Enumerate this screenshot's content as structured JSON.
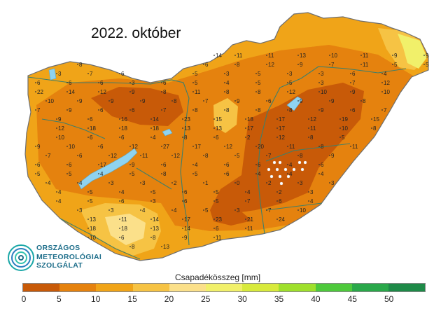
{
  "title": "2022. október",
  "logo": {
    "lines": [
      "ORSZÁGOS",
      "METEOROLÓGIAI",
      "SZOLGÁLAT"
    ]
  },
  "legend": {
    "title": "Csapadékösszeg [mm]",
    "ticks": [
      "0",
      "5",
      "10",
      "15",
      "20",
      "25",
      "30",
      "35",
      "40",
      "45",
      "50"
    ],
    "colors": [
      "#c85a08",
      "#e5820e",
      "#f0a418",
      "#f6c344",
      "#fbe08a",
      "#f1f06a",
      "#d8ea3c",
      "#9fe02c",
      "#4ec93c",
      "#2aa84a",
      "#1e8a48"
    ]
  },
  "map_colors": {
    "outside": "#ffffff",
    "border": "#6e6e6e",
    "river": "#3f7f6a",
    "lake": "#8fd3f0",
    "zone_lt5": "#c85a08",
    "zone_5_10": "#e5820e",
    "zone_10_15": "#f0a418",
    "zone_15_20": "#f6c344",
    "zone_20_25": "#fbe08a",
    "zone_25_30": "#f1f06a"
  },
  "stations": [
    "14",
    "11",
    "11",
    "13",
    "10",
    "11",
    "9",
    "9",
    "8",
    "6",
    "8",
    "12",
    "9",
    "7",
    "11",
    "5",
    "5",
    "3",
    "7",
    "6",
    "5",
    "3",
    "5",
    "3",
    "3",
    "6",
    "4",
    "6",
    "6",
    "6",
    "3",
    "6",
    "5",
    "4",
    "5",
    "5",
    "3",
    "7",
    "12",
    "22",
    "14",
    "12",
    "9",
    "8",
    "11",
    "8",
    "8",
    "12",
    "10",
    "9",
    "10",
    "10",
    "9",
    "9",
    "9",
    "8",
    "7",
    "9",
    "6",
    "9",
    "9",
    "8",
    "7",
    "9",
    "6",
    "6",
    "7",
    "8",
    "8",
    "8",
    "8",
    "9",
    "6",
    "7",
    "9",
    "6",
    "16",
    "14",
    "23",
    "15",
    "18",
    "17",
    "12",
    "19",
    "15",
    "12",
    "18",
    "18",
    "18",
    "13",
    "13",
    "17",
    "17",
    "11",
    "10",
    "8",
    "10",
    "6",
    "6",
    "4",
    "8",
    "6",
    "2",
    "12",
    "8",
    "5",
    "9",
    "10",
    "6",
    "12",
    "27",
    "17",
    "12",
    "20",
    "11",
    "8",
    "11",
    "7",
    "6",
    "12",
    "11",
    "12",
    "8",
    "5",
    "7",
    "8",
    "9",
    "6",
    "6",
    "17",
    "9",
    "6",
    "4",
    "6",
    "6",
    "4",
    "6",
    "5",
    "5",
    "4",
    "5",
    "8",
    "5",
    "6",
    "4",
    "4",
    "4",
    "4",
    "4",
    "3",
    "3",
    "2",
    "1",
    "0",
    "2",
    "3",
    "3",
    "4",
    "5",
    "4",
    "5",
    "6",
    "5",
    "4",
    "2",
    "3",
    "4",
    "5",
    "6",
    "3",
    "6",
    "5",
    "7",
    "6",
    "4",
    "3",
    "3",
    "4",
    "4",
    "5",
    "3",
    "7",
    "10",
    "13",
    "11",
    "14",
    "17",
    "23",
    "21",
    "24",
    "18",
    "18",
    "13",
    "14",
    "6",
    "11",
    "10",
    "6",
    "8",
    "9",
    "11",
    "8",
    "13"
  ]
}
